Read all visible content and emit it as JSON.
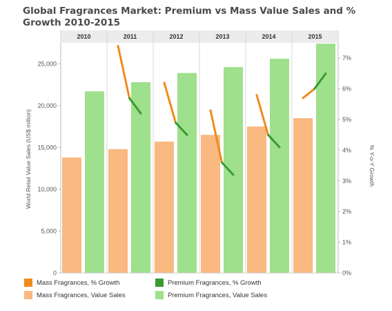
{
  "chart_data": {
    "type": "bar",
    "title": "Global Fragrances Market: Premium vs Mass Value Sales and % Growth 2010-2015",
    "categories": [
      "2010",
      "2011",
      "2012",
      "2013",
      "2014",
      "2015"
    ],
    "ylabel": "World Retail Value Sales (US$ million)",
    "y2label": "% Y-o-Y Growth",
    "ylim": [
      0,
      27500
    ],
    "y2lim": [
      0,
      7.5
    ],
    "yticks": [
      "0",
      "5,000",
      "10,000",
      "15,000",
      "20,000",
      "25,000"
    ],
    "yticks_values": [
      0,
      5000,
      10000,
      15000,
      20000,
      25000
    ],
    "y2ticks": [
      "0%",
      "1%",
      "2%",
      "3%",
      "4%",
      "5%",
      "6%",
      "7%"
    ],
    "y2ticks_values": [
      0,
      1,
      2,
      3,
      4,
      5,
      6,
      7
    ],
    "series": [
      {
        "name": "Mass Fragrances, Value Sales",
        "kind": "bar",
        "color": "#f9b980",
        "values": [
          13800,
          14800,
          15700,
          16500,
          17500,
          18500
        ]
      },
      {
        "name": "Premium Fragrances, Value Sales",
        "kind": "bar",
        "color": "#9ee08c",
        "values": [
          21700,
          22800,
          23900,
          24600,
          25600,
          27400
        ]
      },
      {
        "name": "Mass Fragrances, % Growth",
        "kind": "line",
        "axis": "right",
        "color": "#f08a1e",
        "segments": [
          [],
          [
            7.4,
            5.7
          ],
          [
            6.2,
            4.9
          ],
          [
            5.3,
            3.6
          ],
          [
            5.8,
            4.5
          ],
          [
            5.7,
            6.0
          ]
        ]
      },
      {
        "name": "Premium Fragrances, % Growth",
        "kind": "line",
        "axis": "right",
        "color": "#3b9a2f",
        "segments": [
          [],
          [
            5.7,
            5.2
          ],
          [
            4.9,
            4.5
          ],
          [
            3.6,
            3.2
          ],
          [
            4.5,
            4.1
          ],
          [
            6.0,
            6.5
          ]
        ]
      }
    ],
    "legend_position": "bottom",
    "grid": false
  },
  "legend": [
    {
      "label": "Mass Fragrances, % Growth",
      "color": "#f08a1e"
    },
    {
      "label": "Premium Fragrances, % Growth",
      "color": "#3b9a2f"
    },
    {
      "label": "Mass Fragrances, Value Sales",
      "color": "#f9b980"
    },
    {
      "label": "Premium Fragrances, Value Sales",
      "color": "#9ee08c"
    }
  ]
}
